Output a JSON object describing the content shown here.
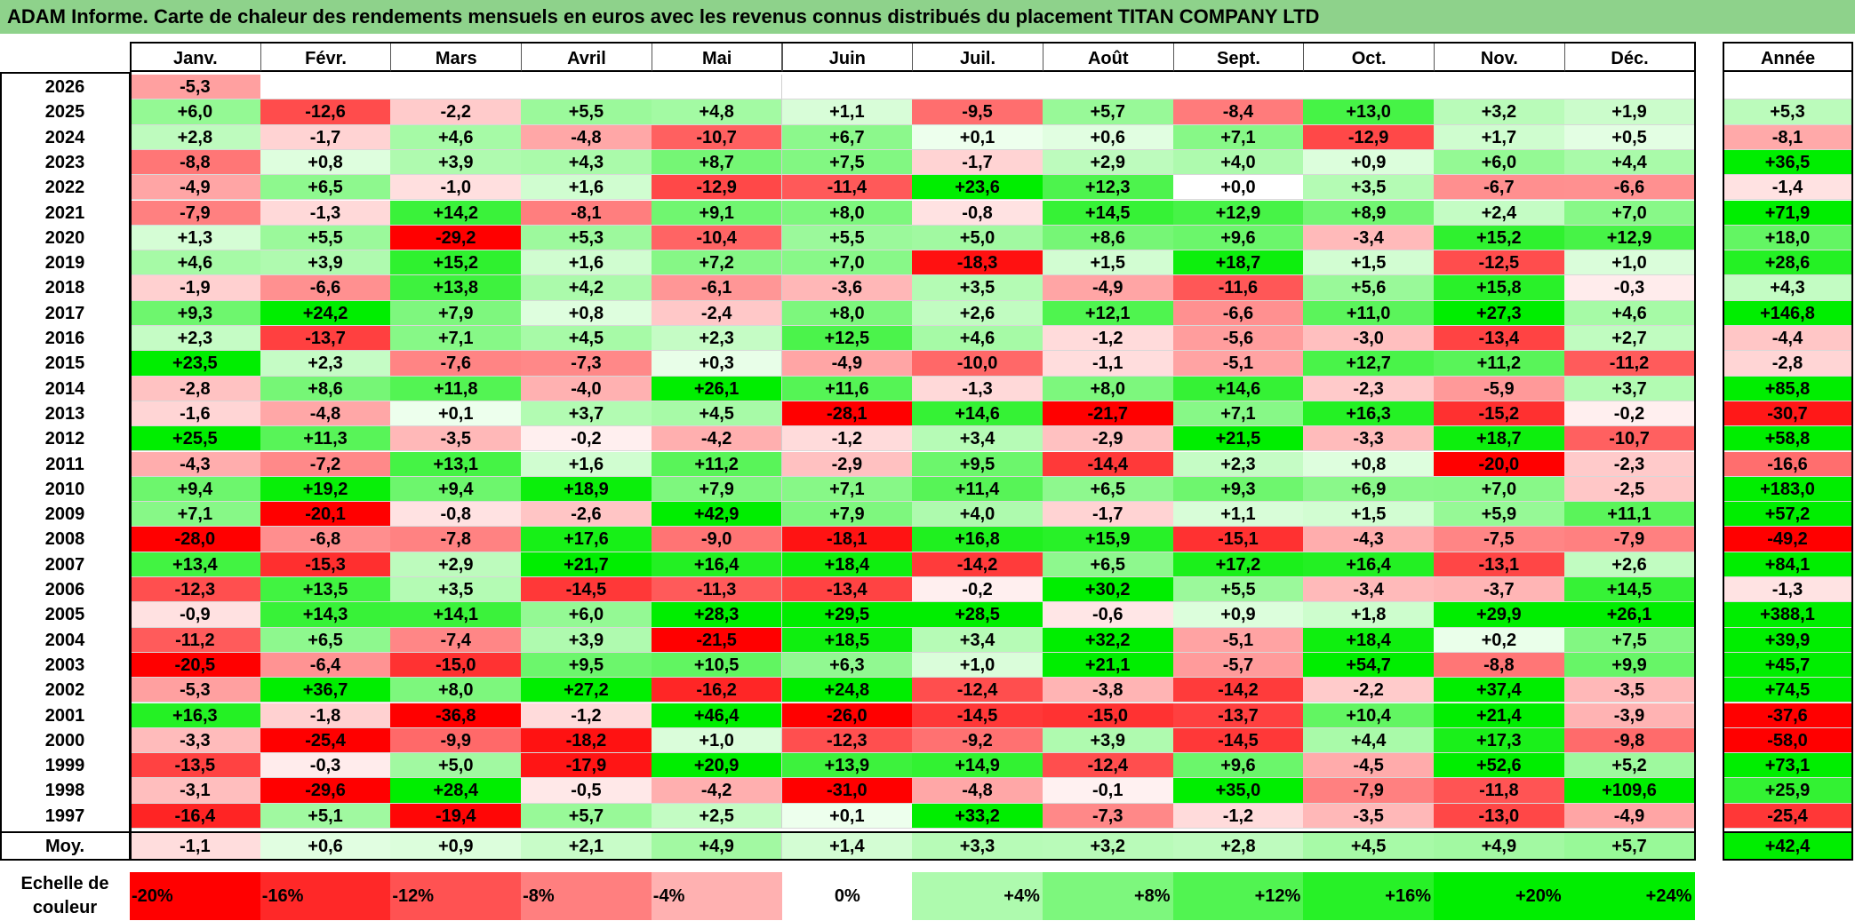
{
  "title": "ADAM Informe. Carte de chaleur des rendements mensuels en euros avec les revenus connus distribués du placement TITAN COMPANY LTD",
  "months": [
    "Janv.",
    "Févr.",
    "Mars",
    "Avril",
    "Mai",
    "Juin",
    "Juil.",
    "Août",
    "Sept.",
    "Oct.",
    "Nov.",
    "Déc."
  ],
  "year_header": "Année",
  "avg_label": "Moy.",
  "scale_label": "Echelle de couleur",
  "colors": {
    "negative_max": "#ff0000",
    "neutral": "#ffffff",
    "positive_max": "#00ee00",
    "title_bg": "#8ed28b"
  },
  "chart_data": {
    "type": "heatmap",
    "title": "ADAM Informe. Carte de chaleur des rendements mensuels en euros avec les revenus connus distribués du placement TITAN COMPANY LTD",
    "columns": [
      "Janv.",
      "Févr.",
      "Mars",
      "Avril",
      "Mai",
      "Juin",
      "Juil.",
      "Août",
      "Sept.",
      "Oct.",
      "Nov.",
      "Déc.",
      "Année"
    ],
    "rows": [
      {
        "year": "2026",
        "values": [
          "-5,3",
          "",
          "",
          "",
          "",
          "",
          "",
          "",
          "",
          "",
          "",
          ""
        ],
        "annual": ""
      },
      {
        "year": "2025",
        "values": [
          "+6,0",
          "-12,6",
          "-2,2",
          "+5,5",
          "+4,8",
          "+1,1",
          "-9,5",
          "+5,7",
          "-8,4",
          "+13,0",
          "+3,2",
          "+1,9"
        ],
        "annual": "+5,3"
      },
      {
        "year": "2024",
        "values": [
          "+2,8",
          "-1,7",
          "+4,6",
          "-4,8",
          "-10,7",
          "+6,7",
          "+0,1",
          "+0,6",
          "+7,1",
          "-12,9",
          "+1,7",
          "+0,5"
        ],
        "annual": "-8,1"
      },
      {
        "year": "2023",
        "values": [
          "-8,8",
          "+0,8",
          "+3,9",
          "+4,3",
          "+8,7",
          "+7,5",
          "-1,7",
          "+2,9",
          "+4,0",
          "+0,9",
          "+6,0",
          "+4,4"
        ],
        "annual": "+36,5"
      },
      {
        "year": "2022",
        "values": [
          "-4,9",
          "+6,5",
          "-1,0",
          "+1,6",
          "-12,9",
          "-11,4",
          "+23,6",
          "+12,3",
          "+0,0",
          "+3,5",
          "-6,7",
          "-6,6"
        ],
        "annual": "-1,4"
      },
      {
        "year": "2021",
        "values": [
          "-7,9",
          "-1,3",
          "+14,2",
          "-8,1",
          "+9,1",
          "+8,0",
          "-0,8",
          "+14,5",
          "+12,9",
          "+8,9",
          "+2,4",
          "+7,0"
        ],
        "annual": "+71,9"
      },
      {
        "year": "2020",
        "values": [
          "+1,3",
          "+5,5",
          "-29,2",
          "+5,3",
          "-10,4",
          "+5,5",
          "+5,0",
          "+8,6",
          "+9,6",
          "-3,4",
          "+15,2",
          "+12,9"
        ],
        "annual": "+18,0"
      },
      {
        "year": "2019",
        "values": [
          "+4,6",
          "+3,9",
          "+15,2",
          "+1,6",
          "+7,2",
          "+7,0",
          "-18,3",
          "+1,5",
          "+18,7",
          "+1,5",
          "-12,5",
          "+1,0"
        ],
        "annual": "+28,6"
      },
      {
        "year": "2018",
        "values": [
          "-1,9",
          "-6,6",
          "+13,8",
          "+4,2",
          "-6,1",
          "-3,6",
          "+3,5",
          "-4,9",
          "-11,6",
          "+5,6",
          "+15,8",
          "-0,3"
        ],
        "annual": "+4,3"
      },
      {
        "year": "2017",
        "values": [
          "+9,3",
          "+24,2",
          "+7,9",
          "+0,8",
          "-2,4",
          "+8,0",
          "+2,6",
          "+12,1",
          "-6,6",
          "+11,0",
          "+27,3",
          "+4,6"
        ],
        "annual": "+146,8"
      },
      {
        "year": "2016",
        "values": [
          "+2,3",
          "-13,7",
          "+7,1",
          "+4,5",
          "+2,3",
          "+12,5",
          "+4,6",
          "-1,2",
          "-5,6",
          "-3,0",
          "-13,4",
          "+2,7"
        ],
        "annual": "-4,4"
      },
      {
        "year": "2015",
        "values": [
          "+23,5",
          "+2,3",
          "-7,6",
          "-7,3",
          "+0,3",
          "-4,9",
          "-10,0",
          "-1,1",
          "-5,1",
          "+12,7",
          "+11,2",
          "-11,2"
        ],
        "annual": "-2,8"
      },
      {
        "year": "2014",
        "values": [
          "-2,8",
          "+8,6",
          "+11,8",
          "-4,0",
          "+26,1",
          "+11,6",
          "-1,3",
          "+8,0",
          "+14,6",
          "-2,3",
          "-5,9",
          "+3,7"
        ],
        "annual": "+85,8"
      },
      {
        "year": "2013",
        "values": [
          "-1,6",
          "-4,8",
          "+0,1",
          "+3,7",
          "+4,5",
          "-28,1",
          "+14,6",
          "-21,7",
          "+7,1",
          "+16,3",
          "-15,2",
          "-0,2"
        ],
        "annual": "-30,7"
      },
      {
        "year": "2012",
        "values": [
          "+25,5",
          "+11,3",
          "-3,5",
          "-0,2",
          "-4,2",
          "-1,2",
          "+3,4",
          "-2,9",
          "+21,5",
          "-3,3",
          "+18,7",
          "-10,7"
        ],
        "annual": "+58,8"
      },
      {
        "year": "2011",
        "values": [
          "-4,3",
          "-7,2",
          "+13,1",
          "+1,6",
          "+11,2",
          "-2,9",
          "+9,5",
          "-14,4",
          "+2,3",
          "+0,8",
          "-20,0",
          "-2,3"
        ],
        "annual": "-16,6"
      },
      {
        "year": "2010",
        "values": [
          "+9,4",
          "+19,2",
          "+9,4",
          "+18,9",
          "+7,9",
          "+7,1",
          "+11,4",
          "+6,5",
          "+9,3",
          "+6,9",
          "+7,0",
          "-2,5"
        ],
        "annual": "+183,0"
      },
      {
        "year": "2009",
        "values": [
          "+7,1",
          "-20,1",
          "-0,8",
          "-2,6",
          "+42,9",
          "+7,9",
          "+4,0",
          "-1,7",
          "+1,1",
          "+1,5",
          "+5,9",
          "+11,1"
        ],
        "annual": "+57,2"
      },
      {
        "year": "2008",
        "values": [
          "-28,0",
          "-6,8",
          "-7,8",
          "+17,6",
          "-9,0",
          "-18,1",
          "+16,8",
          "+15,9",
          "-15,1",
          "-4,3",
          "-7,5",
          "-7,9"
        ],
        "annual": "-49,2"
      },
      {
        "year": "2007",
        "values": [
          "+13,4",
          "-15,3",
          "+2,9",
          "+21,7",
          "+16,4",
          "+18,4",
          "-14,2",
          "+6,5",
          "+17,2",
          "+16,4",
          "-13,1",
          "+2,6"
        ],
        "annual": "+84,1"
      },
      {
        "year": "2006",
        "values": [
          "-12,3",
          "+13,5",
          "+3,5",
          "-14,5",
          "-11,3",
          "-13,4",
          "-0,2",
          "+30,2",
          "+5,5",
          "-3,4",
          "-3,7",
          "+14,5"
        ],
        "annual": "-1,3"
      },
      {
        "year": "2005",
        "values": [
          "-0,9",
          "+14,3",
          "+14,1",
          "+6,0",
          "+28,3",
          "+29,5",
          "+28,5",
          "-0,6",
          "+0,9",
          "+1,8",
          "+29,9",
          "+26,1"
        ],
        "annual": "+388,1"
      },
      {
        "year": "2004",
        "values": [
          "-11,2",
          "+6,5",
          "-7,4",
          "+3,9",
          "-21,5",
          "+18,5",
          "+3,4",
          "+32,2",
          "-5,1",
          "+18,4",
          "+0,2",
          "+7,5"
        ],
        "annual": "+39,9"
      },
      {
        "year": "2003",
        "values": [
          "-20,5",
          "-6,4",
          "-15,0",
          "+9,5",
          "+10,5",
          "+6,3",
          "+1,0",
          "+21,1",
          "-5,7",
          "+54,7",
          "-8,8",
          "+9,9"
        ],
        "annual": "+45,7"
      },
      {
        "year": "2002",
        "values": [
          "-5,3",
          "+36,7",
          "+8,0",
          "+27,2",
          "-16,2",
          "+24,8",
          "-12,4",
          "-3,8",
          "-14,2",
          "-2,2",
          "+37,4",
          "-3,5"
        ],
        "annual": "+74,5"
      },
      {
        "year": "2001",
        "values": [
          "+16,3",
          "-1,8",
          "-36,8",
          "-1,2",
          "+46,4",
          "-26,0",
          "-14,5",
          "-15,0",
          "-13,7",
          "+10,4",
          "+21,4",
          "-3,9"
        ],
        "annual": "-37,6"
      },
      {
        "year": "2000",
        "values": [
          "-3,3",
          "-25,4",
          "-9,9",
          "-18,2",
          "+1,0",
          "-12,3",
          "-9,2",
          "+3,9",
          "-14,5",
          "+4,4",
          "+17,3",
          "-9,8"
        ],
        "annual": "-58,0"
      },
      {
        "year": "1999",
        "values": [
          "-13,5",
          "-0,3",
          "+5,0",
          "-17,9",
          "+20,9",
          "+13,9",
          "+14,9",
          "-12,4",
          "+9,6",
          "-4,5",
          "+52,6",
          "+5,2"
        ],
        "annual": "+73,1"
      },
      {
        "year": "1998",
        "values": [
          "-3,1",
          "-29,6",
          "+28,4",
          "-0,5",
          "-4,2",
          "-31,0",
          "-4,8",
          "-0,1",
          "+35,0",
          "-7,9",
          "-11,8",
          "+109,6"
        ],
        "annual": "+25,9"
      },
      {
        "year": "1997",
        "values": [
          "-16,4",
          "+5,1",
          "-19,4",
          "+5,7",
          "+2,5",
          "+0,1",
          "+33,2",
          "-7,3",
          "-1,2",
          "-3,5",
          "-13,0",
          "-4,9"
        ],
        "annual": "-25,4"
      }
    ],
    "average": {
      "values": [
        "-1,1",
        "+0,6",
        "+0,9",
        "+2,1",
        "+4,9",
        "+1,4",
        "+3,3",
        "+3,2",
        "+2,8",
        "+4,5",
        "+4,9",
        "+5,7"
      ],
      "annual": "+42,4"
    },
    "color_scale": [
      "-20%",
      "-16%",
      "-12%",
      "-8%",
      "-4%",
      "0%",
      "+4%",
      "+8%",
      "+12%",
      "+16%",
      "+20%",
      "+24%"
    ],
    "color_range": [
      -20,
      24
    ]
  }
}
